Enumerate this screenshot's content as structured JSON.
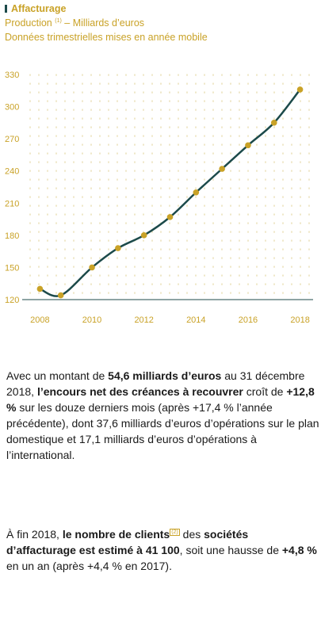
{
  "header": {
    "title": "Affacturage",
    "subtitle_prefix": "Production",
    "subtitle_note": "(1)",
    "subtitle_suffix": "– Milliards d’euros",
    "subtitle_line2": "Données trimestrielles mises en année mobile"
  },
  "colors": {
    "gold": "#c9a227",
    "line": "#1c4a4a",
    "dots": "#e4d7a3"
  },
  "chart_data": {
    "type": "line",
    "x": [
      2008,
      2008.8,
      2010,
      2011,
      2012,
      2013,
      2014,
      2015,
      2016,
      2017,
      2018
    ],
    "series": [
      {
        "values": [
          130,
          124,
          150,
          168,
          180,
          197,
          220,
          242,
          264,
          285,
          316
        ]
      }
    ],
    "xticks": [
      "2008",
      "2010",
      "2012",
      "2014",
      "2016",
      "2018"
    ],
    "yticks": [
      "120",
      "150",
      "180",
      "210",
      "240",
      "270",
      "300",
      "330"
    ],
    "xlim": [
      2007.5,
      2018.5
    ],
    "ylim": [
      120,
      330
    ],
    "grid": "dotted"
  },
  "paragraph1": {
    "t1": "Avec un montant de ",
    "b1": "54,6 milliards d’euros",
    "t2": " au 31 décembre 2018, ",
    "b2": "l’encours net des créances à recouvrer",
    "t3": " croît de ",
    "b3": "+12,8 %",
    "t4": " sur les douze derniers mois (après +17,4 % l’année précédente), dont 37,6 milliards d’euros d’opérations sur le plan domestique et 17,1 milliards d’euros d’opérations à l’international."
  },
  "paragraph2": {
    "t1": "À fin 2018, ",
    "b1": "le nombre de clients",
    "note": "(2)",
    "t2": " des ",
    "b2": "sociétés d’affacturage est estimé à 41 100",
    "t3": ", soit une hausse de ",
    "b3": "+4,8 %",
    "t4": " en un an (après +4,4 % en 2017)."
  }
}
